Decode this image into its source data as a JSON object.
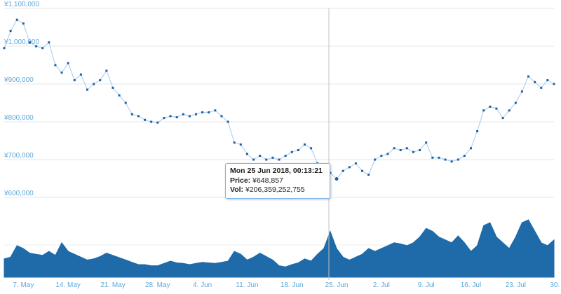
{
  "chart_data": [
    {
      "type": "scatter",
      "title": "",
      "xlabel": "",
      "ylabel": "",
      "currency": "¥",
      "ylim": [
        600000,
        1100000
      ],
      "yticks": [
        "¥1,100,000",
        "¥1,000,000",
        "¥900,000",
        "¥800,000",
        "¥700,000",
        "¥600,000"
      ],
      "ytick_values": [
        1100000,
        1000000,
        900000,
        800000,
        700000,
        600000
      ],
      "xlim": [
        0,
        86
      ],
      "xticks": [
        "7. May",
        "14. May",
        "21. May",
        "28. May",
        "4. Jun",
        "11. Jun",
        "18. Jun",
        "25. Jun",
        "2. Jul",
        "9. Jul",
        "16. Jul",
        "23. Jul",
        "30. Jul"
      ],
      "xtick_days": [
        3,
        10,
        17,
        24,
        31,
        38,
        45,
        52,
        59,
        66,
        73,
        80,
        87
      ],
      "marker_color": "#1f5fa0",
      "line_color": "#7cb5ec",
      "grid": true,
      "series": [
        {
          "x": [
            0,
            1,
            2,
            3,
            4,
            5,
            6,
            7,
            8,
            9,
            10,
            11,
            12,
            13,
            14,
            15,
            16,
            17,
            18,
            19,
            20,
            21,
            22,
            23,
            24,
            25,
            26,
            27,
            28,
            29,
            30,
            31,
            32,
            33,
            34,
            35,
            36,
            37,
            38,
            39,
            40,
            41,
            42,
            43,
            44,
            45,
            46,
            47,
            48,
            49,
            50,
            51,
            52,
            53,
            54,
            55,
            56,
            57,
            58,
            59,
            60,
            61,
            62,
            63,
            64,
            65,
            66,
            67,
            68,
            69,
            70,
            71,
            72,
            73,
            74,
            75,
            76,
            77,
            78,
            79,
            80,
            81,
            82,
            83,
            84,
            85,
            86
          ],
          "values": [
            995000,
            1040000,
            1070000,
            1060000,
            1010000,
            1000000,
            995000,
            1010000,
            950000,
            930000,
            955000,
            910000,
            925000,
            885000,
            900000,
            910000,
            935000,
            890000,
            870000,
            850000,
            820000,
            815000,
            805000,
            800000,
            798000,
            810000,
            815000,
            812000,
            820000,
            815000,
            820000,
            825000,
            825000,
            830000,
            815000,
            800000,
            745000,
            740000,
            715000,
            700000,
            710000,
            700000,
            705000,
            700000,
            710000,
            720000,
            725000,
            740000,
            730000,
            690000,
            660000,
            665000,
            649000,
            670000,
            680000,
            690000,
            670000,
            660000,
            700000,
            710000,
            715000,
            730000,
            725000,
            730000,
            720000,
            725000,
            745000,
            705000,
            705000,
            700000,
            695000,
            700000,
            710000,
            730000,
            775000,
            830000,
            840000,
            835000,
            810000,
            830000,
            850000,
            880000,
            920000,
            905000,
            890000,
            910000,
            900000
          ]
        }
      ]
    },
    {
      "type": "area",
      "title": "",
      "color": "#1f6aa8",
      "x": [
        0,
        1,
        2,
        3,
        4,
        5,
        6,
        7,
        8,
        9,
        10,
        11,
        12,
        13,
        14,
        15,
        16,
        17,
        18,
        19,
        20,
        21,
        22,
        23,
        24,
        25,
        26,
        27,
        28,
        29,
        30,
        31,
        32,
        33,
        34,
        35,
        36,
        37,
        38,
        39,
        40,
        41,
        42,
        43,
        44,
        45,
        46,
        47,
        48,
        49,
        50,
        51,
        52,
        53,
        54,
        55,
        56,
        57,
        58,
        59,
        60,
        61,
        62,
        63,
        64,
        65,
        66,
        67,
        68,
        69,
        70,
        71,
        72,
        73,
        74,
        75,
        76,
        77,
        78,
        79,
        80,
        81,
        82,
        83,
        84,
        85,
        86
      ],
      "values": [
        0.32,
        0.35,
        0.55,
        0.5,
        0.42,
        0.4,
        0.38,
        0.45,
        0.38,
        0.6,
        0.45,
        0.4,
        0.35,
        0.3,
        0.32,
        0.36,
        0.42,
        0.38,
        0.34,
        0.3,
        0.26,
        0.22,
        0.22,
        0.2,
        0.2,
        0.24,
        0.28,
        0.25,
        0.24,
        0.22,
        0.24,
        0.26,
        0.25,
        0.24,
        0.26,
        0.28,
        0.45,
        0.4,
        0.3,
        0.35,
        0.42,
        0.36,
        0.3,
        0.2,
        0.18,
        0.22,
        0.25,
        0.32,
        0.28,
        0.4,
        0.5,
        0.8,
        0.5,
        0.35,
        0.3,
        0.35,
        0.4,
        0.5,
        0.45,
        0.5,
        0.55,
        0.6,
        0.58,
        0.55,
        0.6,
        0.7,
        0.85,
        0.8,
        0.7,
        0.65,
        0.6,
        0.72,
        0.6,
        0.45,
        0.55,
        0.9,
        0.95,
        0.7,
        0.6,
        0.5,
        0.7,
        0.95,
        1.0,
        0.8,
        0.6,
        0.55,
        0.65
      ]
    }
  ],
  "tooltip": {
    "title": "Mon 25 Jun 2018, 00:13:21",
    "price_label": "Price:",
    "price_value": "¥648,857",
    "vol_label": "Vol:",
    "vol_value": "¥206,359,252,755"
  }
}
